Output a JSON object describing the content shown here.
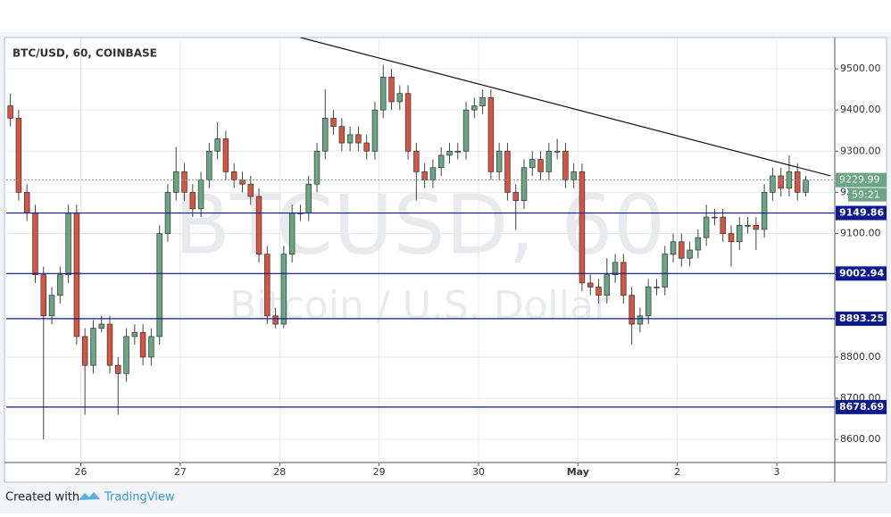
{
  "chart_data": {
    "type": "candlestick",
    "title": "BTC/USD, 60, COINBASE",
    "watermark": {
      "title": "BTCUSD, 60",
      "subtitle": "Bitcoin / U.S. Dollar"
    },
    "xlim": [
      6,
      206
    ],
    "ylim": [
      8544,
      9576
    ],
    "xticks": [
      {
        "value": 24,
        "label": "26"
      },
      {
        "value": 48,
        "label": "27"
      },
      {
        "value": 72,
        "label": "28"
      },
      {
        "value": 96,
        "label": "29"
      },
      {
        "value": 120,
        "label": "30"
      },
      {
        "value": 144,
        "label": "May"
      },
      {
        "value": 168,
        "label": "2"
      },
      {
        "value": 192,
        "label": "3"
      }
    ],
    "yticks": [
      {
        "value": 8600,
        "label": "8600.00"
      },
      {
        "value": 8700,
        "label": "8700.00"
      },
      {
        "value": 8800,
        "label": "8800.00"
      },
      {
        "value": 8900,
        "label": "8900.00"
      },
      {
        "value": 9000,
        "label": "9000.00"
      },
      {
        "value": 9100,
        "label": "9100.00"
      },
      {
        "value": 9200,
        "label": "9200.00"
      },
      {
        "value": 9300,
        "label": "9300.00"
      },
      {
        "value": 9400,
        "label": "9400.00"
      },
      {
        "value": 9500,
        "label": "9500.00"
      }
    ],
    "grid": true,
    "up_color": "#6ba583",
    "down_color": "#d75442",
    "x": [
      7,
      9,
      11,
      13,
      15,
      17,
      19,
      21,
      23,
      25,
      27,
      29,
      31,
      33,
      35,
      37,
      39,
      41,
      43,
      45,
      47,
      49,
      51,
      53,
      55,
      57,
      59,
      61,
      63,
      65,
      67,
      69,
      71,
      73,
      75,
      77,
      79,
      81,
      83,
      85,
      87,
      89,
      91,
      93,
      95,
      97,
      99,
      101,
      103,
      105,
      107,
      109,
      111,
      113,
      115,
      117,
      119,
      121,
      123,
      125,
      127,
      129,
      131,
      133,
      135,
      137,
      139,
      141,
      143,
      145,
      147,
      149,
      151,
      153,
      155,
      157,
      159,
      161,
      163,
      165,
      167,
      169,
      171,
      173,
      175,
      177,
      179,
      181,
      183,
      185,
      187,
      189,
      191,
      193,
      195,
      197,
      199
    ],
    "ohlc": [
      [
        9410,
        9440,
        9360,
        9380
      ],
      [
        9380,
        9400,
        9180,
        9200
      ],
      [
        9200,
        9220,
        9130,
        9150
      ],
      [
        9150,
        9170,
        8980,
        9000
      ],
      [
        9000,
        9020,
        8600,
        8900
      ],
      [
        8900,
        8970,
        8880,
        8950
      ],
      [
        8950,
        9020,
        8930,
        9000
      ],
      [
        9000,
        9170,
        8980,
        9150
      ],
      [
        9150,
        9170,
        8830,
        8850
      ],
      [
        8850,
        8870,
        8660,
        8780
      ],
      [
        8780,
        8890,
        8760,
        8870
      ],
      [
        8870,
        8900,
        8860,
        8880
      ],
      [
        8880,
        8900,
        8760,
        8780
      ],
      [
        8780,
        8800,
        8660,
        8760
      ],
      [
        8760,
        8870,
        8740,
        8850
      ],
      [
        8850,
        8880,
        8830,
        8860
      ],
      [
        8860,
        8880,
        8780,
        8800
      ],
      [
        8800,
        8870,
        8780,
        8850
      ],
      [
        8850,
        9120,
        8830,
        9100
      ],
      [
        9100,
        9220,
        9080,
        9200
      ],
      [
        9200,
        9310,
        9180,
        9250
      ],
      [
        9250,
        9270,
        9180,
        9200
      ],
      [
        9200,
        9220,
        9140,
        9160
      ],
      [
        9160,
        9250,
        9140,
        9230
      ],
      [
        9230,
        9320,
        9210,
        9300
      ],
      [
        9300,
        9370,
        9280,
        9330
      ],
      [
        9330,
        9350,
        9230,
        9250
      ],
      [
        9250,
        9270,
        9210,
        9230
      ],
      [
        9230,
        9250,
        9200,
        9220
      ],
      [
        9220,
        9240,
        9170,
        9190
      ],
      [
        9190,
        9210,
        9030,
        9050
      ],
      [
        9050,
        9070,
        8880,
        8900
      ],
      [
        8900,
        8920,
        8870,
        8880
      ],
      [
        8880,
        9070,
        8870,
        9050
      ],
      [
        9050,
        9170,
        9030,
        9150
      ],
      [
        9150,
        9170,
        9130,
        9150
      ],
      [
        9150,
        9240,
        9130,
        9220
      ],
      [
        9220,
        9320,
        9200,
        9300
      ],
      [
        9300,
        9450,
        9280,
        9380
      ],
      [
        9380,
        9400,
        9340,
        9360
      ],
      [
        9360,
        9380,
        9300,
        9320
      ],
      [
        9320,
        9360,
        9300,
        9340
      ],
      [
        9340,
        9360,
        9300,
        9320
      ],
      [
        9320,
        9340,
        9280,
        9300
      ],
      [
        9300,
        9420,
        9280,
        9400
      ],
      [
        9400,
        9510,
        9380,
        9480
      ],
      [
        9480,
        9500,
        9400,
        9420
      ],
      [
        9420,
        9460,
        9400,
        9440
      ],
      [
        9440,
        9460,
        9280,
        9300
      ],
      [
        9300,
        9320,
        9180,
        9250
      ],
      [
        9250,
        9270,
        9210,
        9230
      ],
      [
        9230,
        9280,
        9210,
        9260
      ],
      [
        9260,
        9310,
        9240,
        9290
      ],
      [
        9290,
        9320,
        9270,
        9300
      ],
      [
        9300,
        9320,
        9280,
        9300
      ],
      [
        9300,
        9420,
        9280,
        9400
      ],
      [
        9400,
        9430,
        9380,
        9410
      ],
      [
        9410,
        9450,
        9390,
        9430
      ],
      [
        9430,
        9450,
        9230,
        9250
      ],
      [
        9250,
        9320,
        9230,
        9300
      ],
      [
        9300,
        9320,
        9180,
        9200
      ],
      [
        9200,
        9220,
        9110,
        9180
      ],
      [
        9180,
        9280,
        9160,
        9260
      ],
      [
        9260,
        9300,
        9240,
        9280
      ],
      [
        9280,
        9300,
        9230,
        9250
      ],
      [
        9250,
        9320,
        9230,
        9300
      ],
      [
        9300,
        9330,
        9280,
        9300
      ],
      [
        9300,
        9320,
        9210,
        9230
      ],
      [
        9230,
        9270,
        9210,
        9250
      ],
      [
        9250,
        9270,
        8960,
        8980
      ],
      [
        8980,
        9000,
        8950,
        8970
      ],
      [
        8970,
        8990,
        8930,
        8950
      ],
      [
        8950,
        9040,
        8930,
        9000
      ],
      [
        9000,
        9050,
        8980,
        9030
      ],
      [
        9030,
        9050,
        8930,
        8950
      ],
      [
        8950,
        8970,
        8830,
        8880
      ],
      [
        8880,
        8920,
        8860,
        8900
      ],
      [
        8900,
        8990,
        8880,
        8970
      ],
      [
        8970,
        8990,
        8950,
        8970
      ],
      [
        8970,
        9070,
        8950,
        9050
      ],
      [
        9050,
        9100,
        9030,
        9080
      ],
      [
        9080,
        9100,
        9020,
        9040
      ],
      [
        9040,
        9080,
        9020,
        9060
      ],
      [
        9060,
        9110,
        9040,
        9090
      ],
      [
        9090,
        9170,
        9070,
        9140
      ],
      [
        9140,
        9160,
        9120,
        9140
      ],
      [
        9140,
        9160,
        9080,
        9100
      ],
      [
        9100,
        9120,
        9020,
        9080
      ],
      [
        9080,
        9140,
        9060,
        9120
      ],
      [
        9120,
        9140,
        9100,
        9120
      ],
      [
        9120,
        9140,
        9060,
        9110
      ],
      [
        9110,
        9220,
        9090,
        9200
      ],
      [
        9200,
        9260,
        9180,
        9240
      ],
      [
        9240,
        9260,
        9190,
        9210
      ],
      [
        9210,
        9290,
        9190,
        9250
      ],
      [
        9250,
        9270,
        9180,
        9200
      ],
      [
        9200,
        9240,
        9190,
        9230
      ]
    ],
    "levels": [
      9149.86,
      9002.94,
      8893.25,
      8678.69
    ],
    "level_color": "#0d1a8c",
    "trendline": {
      "x": [
        77,
        205
      ],
      "y": [
        9576,
        9240
      ]
    },
    "last_price": 9229.99,
    "countdown": "59:21"
  },
  "footer": {
    "created_with": "Created with",
    "brand": "TradingView"
  }
}
